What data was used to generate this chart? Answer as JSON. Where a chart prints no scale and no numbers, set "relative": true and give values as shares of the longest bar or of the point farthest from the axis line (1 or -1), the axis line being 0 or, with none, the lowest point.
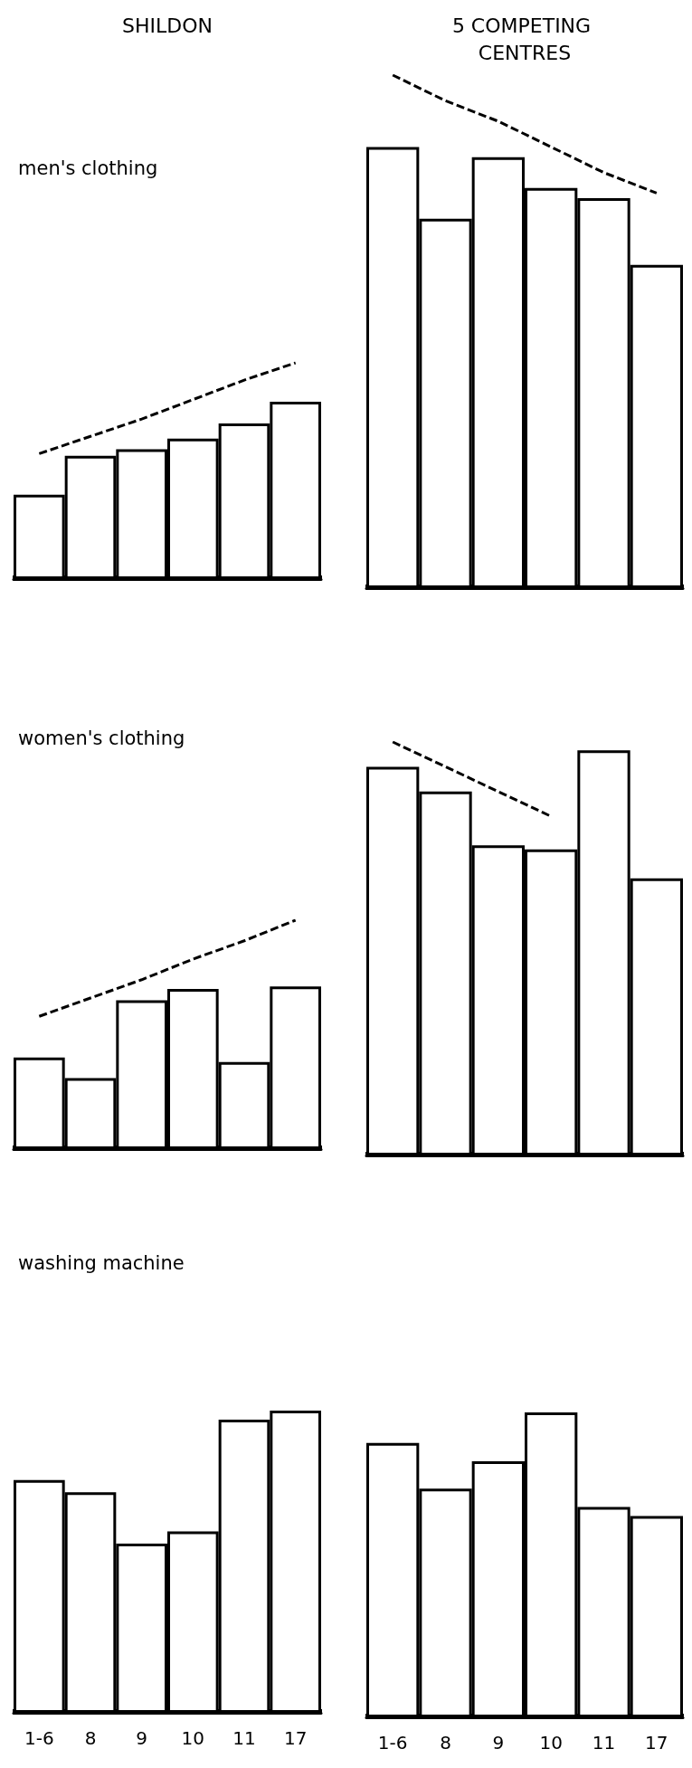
{
  "chart_data": [
    {
      "type": "bar",
      "title": "SHILDON",
      "subtitle": "men's clothing",
      "categories": [
        "1-6",
        "8",
        "9",
        "10",
        "11",
        "17"
      ],
      "relative": true,
      "tick_labels": false,
      "series": [
        {
          "color": "#000000",
          "values": [
            0.39,
            0.57,
            0.6,
            0.65,
            0.72,
            0.82
          ]
        },
        {
          "type": "line",
          "color": "#000000",
          "line_style": "dashed",
          "marker": "none",
          "values": [
            0.58,
            0.66,
            0.74,
            0.83,
            0.92,
            1
          ]
        }
      ]
    },
    {
      "type": "bar",
      "title": "5 COMPETING CENTRES",
      "categories": [
        "1-6",
        "8",
        "9",
        "10",
        "11",
        "17"
      ],
      "relative": true,
      "tick_labels": false,
      "series": [
        {
          "color": "#000000",
          "values": [
            0.86,
            0.72,
            0.84,
            0.78,
            0.76,
            0.63
          ]
        },
        {
          "type": "line",
          "color": "#000000",
          "line_style": "dashed",
          "marker": "none",
          "values": [
            1,
            0.95,
            0.91,
            0.86,
            0.81,
            0.77
          ]
        }
      ]
    },
    {
      "type": "bar",
      "subtitle": "women's clothing",
      "categories": [
        "1-6",
        "8",
        "9",
        "10",
        "11",
        "17"
      ],
      "relative": true,
      "tick_labels": false,
      "series": [
        {
          "color": "#000000",
          "values": [
            0.4,
            0.31,
            0.65,
            0.7,
            0.38,
            0.71
          ]
        },
        {
          "type": "line",
          "color": "#000000",
          "line_style": "dashed",
          "marker": "none",
          "values": [
            0.58,
            0.66,
            0.74,
            0.83,
            0.91,
            1
          ]
        }
      ]
    },
    {
      "type": "bar",
      "categories": [
        "1-6",
        "8",
        "9",
        "10",
        "11",
        "17"
      ],
      "relative": true,
      "tick_labels": false,
      "series": [
        {
          "color": "#000000",
          "values": [
            0.94,
            0.88,
            0.75,
            0.74,
            0.98,
            0.67
          ]
        },
        {
          "type": "line",
          "color": "#000000",
          "line_style": "dashed",
          "marker": "none",
          "values": [
            1,
            0.94,
            0.88,
            0.82,
            null,
            null
          ]
        }
      ]
    },
    {
      "type": "bar",
      "subtitle": "washing machine",
      "categories": [
        "1-6",
        "8",
        "9",
        "10",
        "11",
        "17"
      ],
      "relative": true,
      "series": [
        {
          "color": "#000000",
          "values": [
            0.77,
            0.73,
            0.56,
            0.6,
            0.97,
            1
          ]
        }
      ]
    },
    {
      "type": "bar",
      "categories": [
        "1-6",
        "8",
        "9",
        "10",
        "11",
        "17"
      ],
      "relative": true,
      "series": [
        {
          "color": "#000000",
          "values": [
            0.9,
            0.75,
            0.84,
            1,
            0.69,
            0.66
          ]
        }
      ]
    }
  ]
}
